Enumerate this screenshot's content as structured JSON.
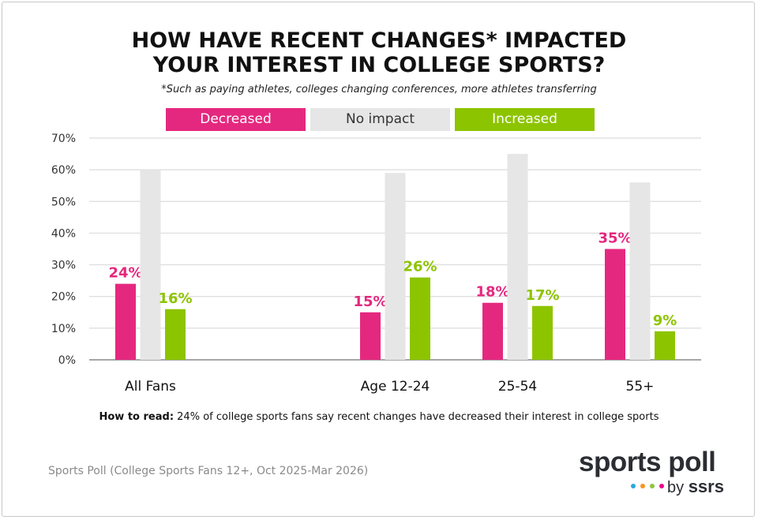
{
  "chart_data": {
    "type": "bar",
    "title": "HOW HAVE RECENT CHANGES* IMPACTED YOUR INTEREST IN COLLEGE SPORTS?",
    "title_lines": [
      "HOW HAVE RECENT CHANGES* IMPACTED",
      "YOUR INTEREST IN COLLEGE SPORTS?"
    ],
    "subtitle": "*Such as paying athletes, colleges changing conferences, more athletes transferring",
    "categories": [
      "All Fans",
      "",
      "Age 12-24",
      "25-54",
      "55+"
    ],
    "series": [
      {
        "name": "Decreased",
        "color": "#e5287f",
        "values": [
          24,
          null,
          15,
          18,
          35
        ],
        "labels": [
          "24%",
          null,
          "15%",
          "18%",
          "35%"
        ]
      },
      {
        "name": "No impact",
        "color": "#e6e6e6",
        "values": [
          60,
          null,
          59,
          65,
          56
        ],
        "labels": [
          null,
          null,
          null,
          null,
          null
        ]
      },
      {
        "name": "Increased",
        "color": "#8dc400",
        "values": [
          16,
          null,
          26,
          17,
          9
        ],
        "labels": [
          "16%",
          null,
          "26%",
          "17%",
          "9%"
        ]
      }
    ],
    "ylim": [
      0,
      70
    ],
    "yticks": [
      "0%",
      "10%",
      "20%",
      "30%",
      "40%",
      "50%",
      "60%",
      "70%"
    ],
    "grid": true,
    "legend_position": "top"
  },
  "how_to_read": {
    "label": "How to read:",
    "text": " 24% of college sports fans say recent changes have decreased their interest in college sports"
  },
  "source": "Sports Poll (College Sports Fans 12+, Oct 2025-Mar 2026)",
  "logo": {
    "line1": "sports poll",
    "by": "by",
    "brand": "ssrs",
    "dot_colors": [
      "#29a8e0",
      "#f7941d",
      "#8dc63f",
      "#ec008c"
    ]
  }
}
